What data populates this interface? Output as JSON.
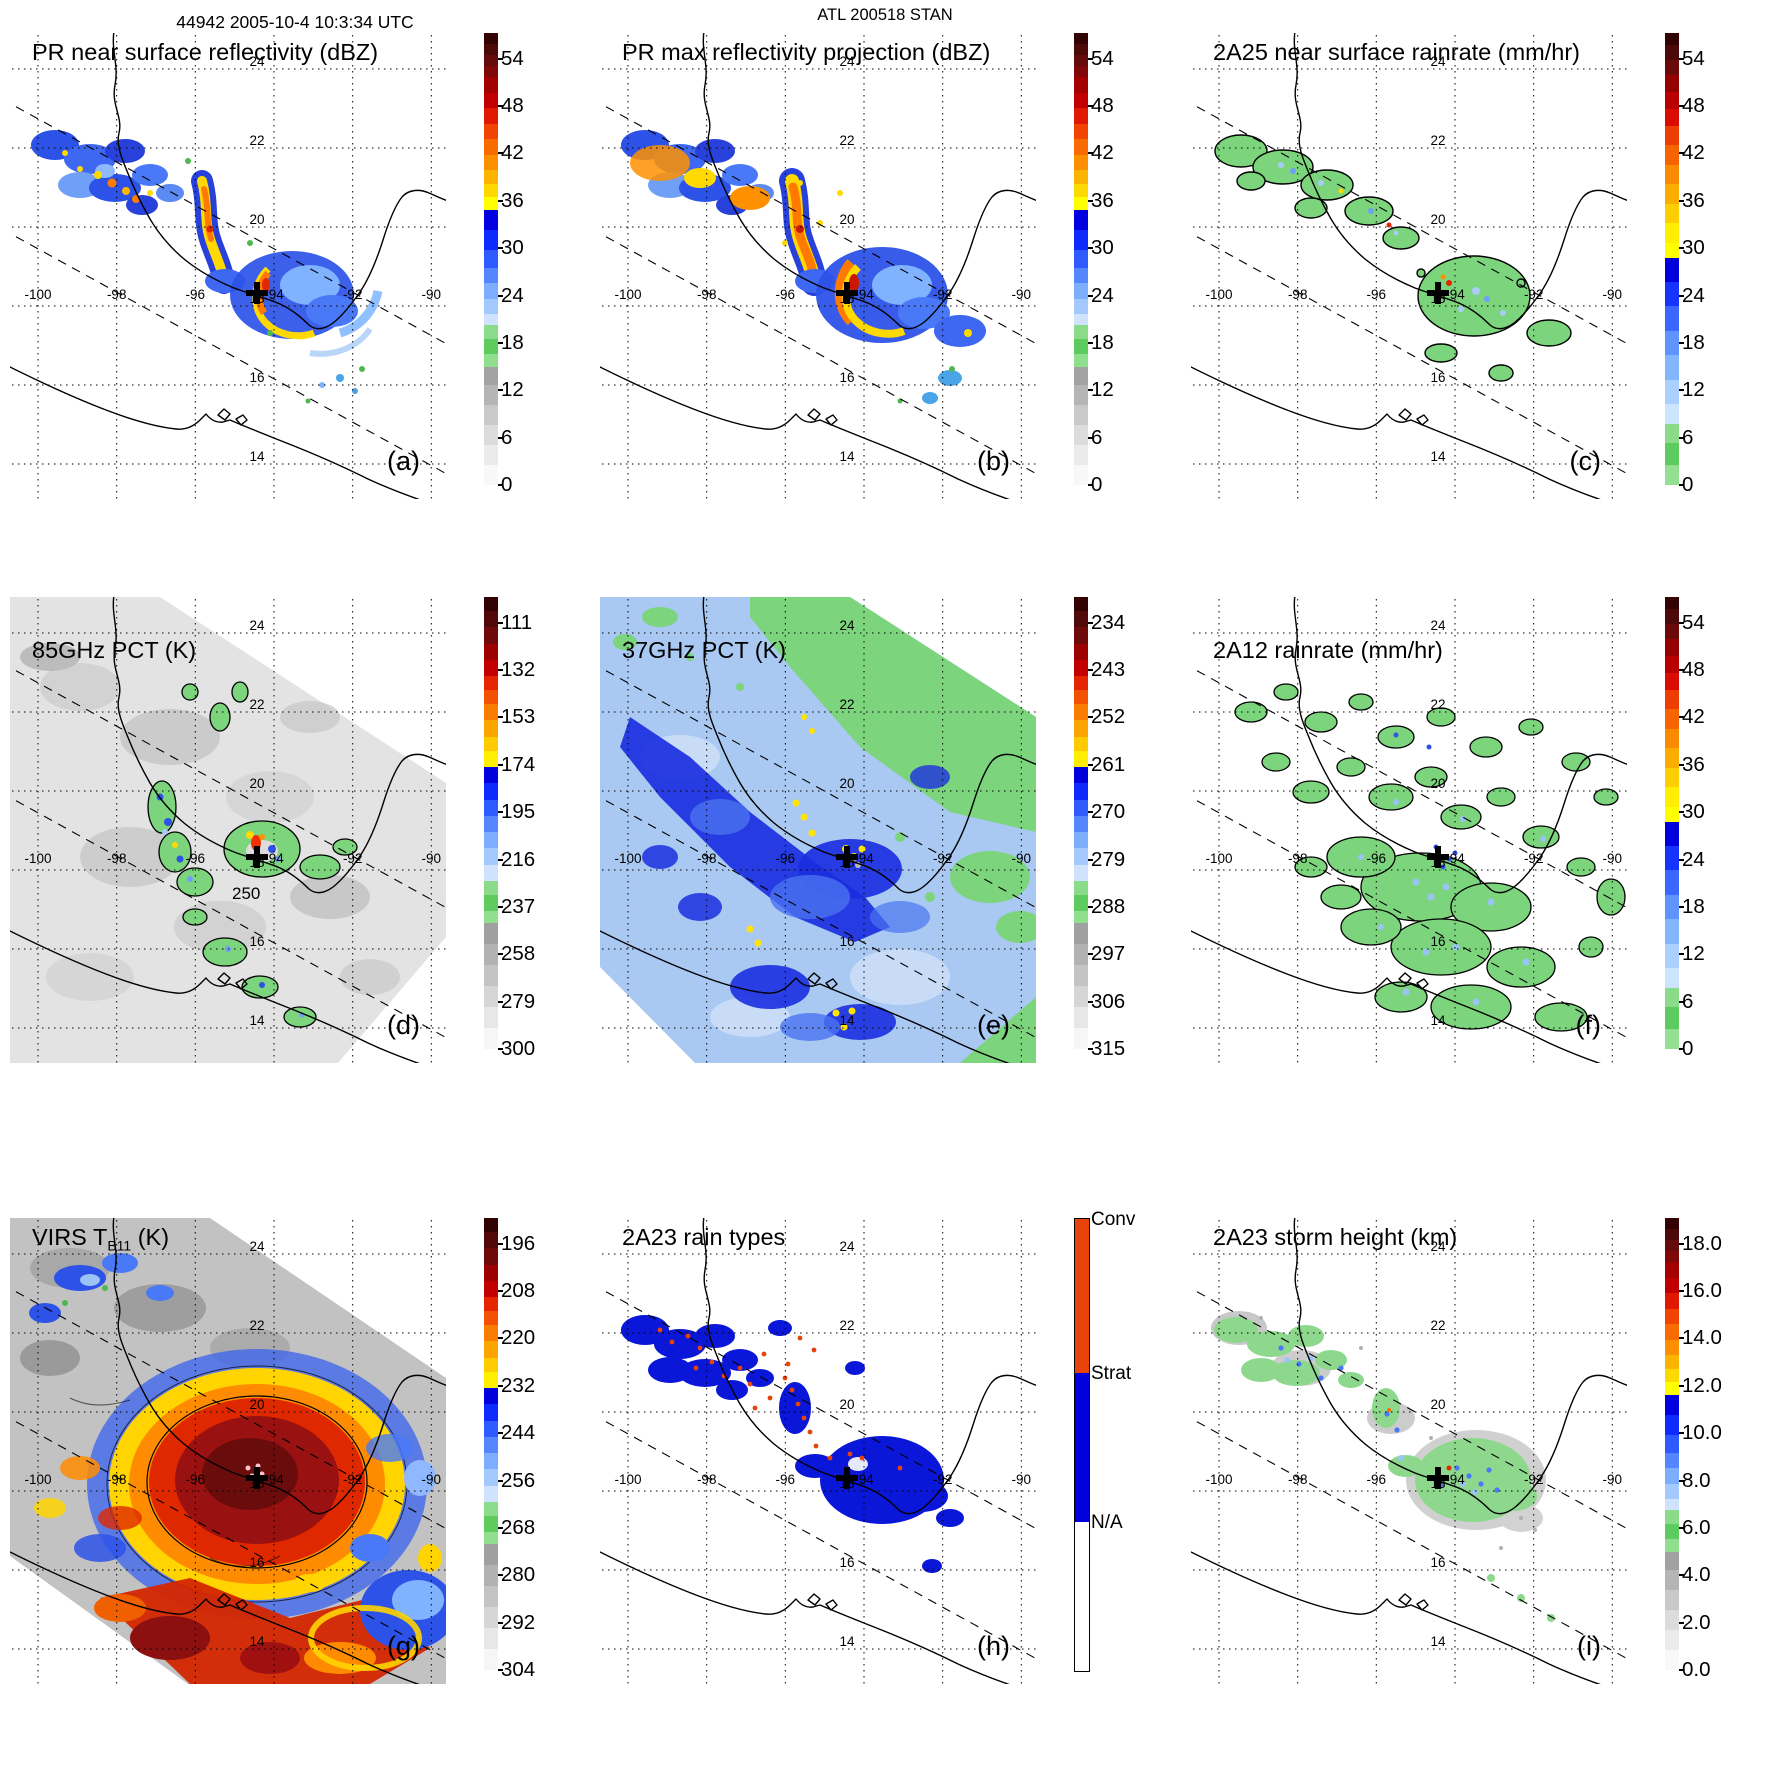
{
  "header": {
    "left_title": "44942 2005-10-4 10:3:34 UTC",
    "center_title": "ATL 200518 STAN"
  },
  "map": {
    "lat_labels": [
      "24",
      "22",
      "20",
      "18",
      "16",
      "14"
    ],
    "lon_labels": [
      "-100",
      "-98",
      "-96",
      "-94",
      "-92",
      "-90"
    ],
    "storm_marker": "+"
  },
  "panels": [
    {
      "id": "a",
      "letter": "(a)",
      "title_pre": "PR near surface reflectivity (dBZ)",
      "title_sub": "",
      "title_post": "",
      "colorbar": "dbz"
    },
    {
      "id": "b",
      "letter": "(b)",
      "title_pre": "PR max reflectivity projection (dBZ)",
      "title_sub": "",
      "title_post": "",
      "colorbar": "dbz"
    },
    {
      "id": "c",
      "letter": "(c)",
      "title_pre": "2A25 near surface rainrate (mm/hr)",
      "title_sub": "",
      "title_post": "",
      "colorbar": "rain"
    },
    {
      "id": "d",
      "letter": "(d)",
      "title_pre": "85GHz PCT (K)",
      "title_sub": "",
      "title_post": "",
      "colorbar": "pct85",
      "contour_label": "250"
    },
    {
      "id": "e",
      "letter": "(e)",
      "title_pre": "37GHz PCT (K)",
      "title_sub": "",
      "title_post": "",
      "colorbar": "pct37"
    },
    {
      "id": "f",
      "letter": "(f)",
      "title_pre": "2A12 rainrate (mm/hr)",
      "title_sub": "",
      "title_post": "",
      "colorbar": "rain2"
    },
    {
      "id": "g",
      "letter": "(g)",
      "title_pre": "VIRS T",
      "title_sub": "B11",
      "title_post": " (K)",
      "colorbar": "virs"
    },
    {
      "id": "h",
      "letter": "(h)",
      "title_pre": "2A23 rain types",
      "title_sub": "",
      "title_post": "",
      "colorbar": "raintype"
    },
    {
      "id": "i",
      "letter": "(i)",
      "title_pre": "2A23 storm height (km)",
      "title_sub": "",
      "title_post": "",
      "colorbar": "height"
    }
  ],
  "palettes": {
    "dbz": [
      [
        "#330303",
        2.5
      ],
      [
        "#4d0808",
        2.5
      ],
      [
        "#660b0b",
        2.5
      ],
      [
        "#800808",
        2.5
      ],
      [
        "#a30000",
        3.5
      ],
      [
        "#c00000",
        3.5
      ],
      [
        "#e01800",
        3.5
      ],
      [
        "#f04400",
        3.5
      ],
      [
        "#f76b00",
        3.5
      ],
      [
        "#fb8f00",
        3.5
      ],
      [
        "#fdb400",
        3
      ],
      [
        "#fed900",
        3
      ],
      [
        "#ffff00",
        3
      ],
      [
        "#0000e0",
        4.5
      ],
      [
        "#0d2bff",
        4.5
      ],
      [
        "#2e5bff",
        4
      ],
      [
        "#5487ff",
        3.5
      ],
      [
        "#7dadff",
        3.5
      ],
      [
        "#a4c9ff",
        3.5
      ],
      [
        "#cfe3ff",
        2.5
      ],
      [
        "#8adc8a",
        3
      ],
      [
        "#5ecb5e",
        3.5
      ],
      [
        "#8fdf8f",
        3
      ],
      [
        "#a2a2a2",
        4
      ],
      [
        "#b5b5b5",
        4.5
      ],
      [
        "#c9c9c9",
        4.5
      ],
      [
        "#dcdcdc",
        4.5
      ],
      [
        "#ebebeb",
        4.5
      ],
      [
        "#f8f8f8",
        4.5
      ]
    ],
    "rain": [
      [
        "#330303",
        2.5
      ],
      [
        "#4d0808",
        3
      ],
      [
        "#6b0909",
        3
      ],
      [
        "#960000",
        3.5
      ],
      [
        "#b80000",
        3.5
      ],
      [
        "#da0c00",
        3.5
      ],
      [
        "#ee3d00",
        4
      ],
      [
        "#f66400",
        4
      ],
      [
        "#fa8a00",
        4
      ],
      [
        "#fdac00",
        4
      ],
      [
        "#fecf00",
        4
      ],
      [
        "#ffee00",
        4
      ],
      [
        "#ffff00",
        3
      ],
      [
        "#0000dd",
        5
      ],
      [
        "#1535ff",
        5
      ],
      [
        "#3a68ff",
        5
      ],
      [
        "#5f94ff",
        5
      ],
      [
        "#84b6ff",
        5
      ],
      [
        "#a9d0ff",
        5
      ],
      [
        "#cde4ff",
        4
      ],
      [
        "#8adc8a",
        4
      ],
      [
        "#5ecb5e",
        4.5
      ],
      [
        "#93e093",
        4
      ]
    ],
    "pct": [
      [
        "#330303",
        3
      ],
      [
        "#500808",
        3.5
      ],
      [
        "#6e0a0a",
        3.5
      ],
      [
        "#9c0000",
        3.5
      ],
      [
        "#c30000",
        3.5
      ],
      [
        "#e52500",
        3
      ],
      [
        "#f25200",
        3
      ],
      [
        "#f87c00",
        3.5
      ],
      [
        "#fca400",
        3.5
      ],
      [
        "#fecb00",
        3
      ],
      [
        "#ffee00",
        3.5
      ],
      [
        "#0000dd",
        3.5
      ],
      [
        "#0d2bff",
        3.5
      ],
      [
        "#2e5bff",
        3.5
      ],
      [
        "#5487ff",
        3.5
      ],
      [
        "#7dadff",
        3.5
      ],
      [
        "#a4c9ff",
        3.5
      ],
      [
        "#cfe3ff",
        3.5
      ],
      [
        "#8adc8a",
        3
      ],
      [
        "#5ecb5e",
        3.5
      ],
      [
        "#8fdf8f",
        2.5
      ],
      [
        "#a0a0a0",
        4.5
      ],
      [
        "#b2b2b2",
        4.5
      ],
      [
        "#c4c4c4",
        4.5
      ],
      [
        "#d6d6d6",
        4.5
      ],
      [
        "#e7e7e7",
        4.5
      ],
      [
        "#f6f6f6",
        4.5
      ]
    ]
  },
  "colorbars": {
    "dbz": {
      "palette": "dbz",
      "ticks": [
        "54",
        "48",
        "42",
        "36",
        "30",
        "24",
        "18",
        "12",
        "6",
        "0"
      ]
    },
    "rain": {
      "palette": "rain",
      "ticks": [
        "54",
        "48",
        "42",
        "36",
        "30",
        "24",
        "18",
        "12",
        "6",
        "0"
      ]
    },
    "rain2": {
      "palette": "rain",
      "ticks": [
        "54",
        "48",
        "42",
        "36",
        "30",
        "24",
        "18",
        "12",
        "6",
        "0"
      ]
    },
    "pct85": {
      "palette": "pct",
      "ticks": [
        "111",
        "132",
        "153",
        "174",
        "195",
        "216",
        "237",
        "258",
        "279",
        "300"
      ]
    },
    "pct37": {
      "palette": "pct",
      "ticks": [
        "234",
        "243",
        "252",
        "261",
        "270",
        "279",
        "288",
        "297",
        "306",
        "315"
      ]
    },
    "virs": {
      "palette": "pct",
      "ticks": [
        "196",
        "208",
        "220",
        "232",
        "244",
        "256",
        "268",
        "280",
        "292",
        "304"
      ]
    },
    "height": {
      "palette": "dbz",
      "ticks": [
        "18.0",
        "16.0",
        "14.0",
        "12.0",
        "10.0",
        "8.0",
        "6.0",
        "4.0",
        "2.0",
        "0.0"
      ]
    },
    "raintype": {
      "palette": "raintype",
      "labels": [
        "Conv",
        "Strat",
        "N/A"
      ],
      "colors": [
        "#e8430a",
        "#0000dd",
        "#ffffff"
      ]
    }
  },
  "chart_data": [
    {
      "panel": "a",
      "type": "heatmap",
      "title": "PR near surface reflectivity (dBZ)",
      "units": "dBZ",
      "colorbar_ticks": [
        54,
        48,
        42,
        36,
        30,
        24,
        18,
        12,
        6,
        0
      ],
      "legend_position": "right"
    },
    {
      "panel": "b",
      "type": "heatmap",
      "title": "PR max reflectivity projection (dBZ)",
      "units": "dBZ",
      "colorbar_ticks": [
        54,
        48,
        42,
        36,
        30,
        24,
        18,
        12,
        6,
        0
      ],
      "legend_position": "right"
    },
    {
      "panel": "c",
      "type": "heatmap",
      "title": "2A25 near surface rainrate (mm/hr)",
      "units": "mm/hr",
      "colorbar_ticks": [
        54,
        48,
        42,
        36,
        30,
        24,
        18,
        12,
        6,
        0
      ],
      "legend_position": "right"
    },
    {
      "panel": "d",
      "type": "heatmap",
      "title": "85GHz PCT (K)",
      "units": "K",
      "colorbar_ticks": [
        111,
        132,
        153,
        174,
        195,
        216,
        237,
        258,
        279,
        300
      ],
      "contour_label": 250,
      "legend_position": "right"
    },
    {
      "panel": "e",
      "type": "heatmap",
      "title": "37GHz PCT (K)",
      "units": "K",
      "colorbar_ticks": [
        234,
        243,
        252,
        261,
        270,
        279,
        288,
        297,
        306,
        315
      ],
      "legend_position": "right"
    },
    {
      "panel": "f",
      "type": "heatmap",
      "title": "2A12 rainrate (mm/hr)",
      "units": "mm/hr",
      "colorbar_ticks": [
        54,
        48,
        42,
        36,
        30,
        24,
        18,
        12,
        6,
        0
      ],
      "legend_position": "right"
    },
    {
      "panel": "g",
      "type": "heatmap",
      "title": "VIRS TB11 (K)",
      "units": "K",
      "colorbar_ticks": [
        196,
        208,
        220,
        232,
        244,
        256,
        268,
        280,
        292,
        304
      ],
      "legend_position": "right"
    },
    {
      "panel": "h",
      "type": "heatmap",
      "title": "2A23 rain types",
      "units": "category",
      "categories": [
        "Conv",
        "Strat",
        "N/A"
      ],
      "legend_position": "right"
    },
    {
      "panel": "i",
      "type": "heatmap",
      "title": "2A23 storm height (km)",
      "units": "km",
      "colorbar_ticks": [
        18.0,
        16.0,
        14.0,
        12.0,
        10.0,
        8.0,
        6.0,
        4.0,
        2.0,
        0.0
      ],
      "legend_position": "right"
    },
    {
      "shared_map": {
        "lon_gridlines": [
          -100,
          -98,
          -96,
          -94,
          -92,
          -90
        ],
        "lat_gridlines": [
          24,
          22,
          20,
          18,
          16,
          14
        ],
        "storm_center_estimate": {
          "lon": -94.4,
          "lat": 18.3
        },
        "grid": "dotted"
      }
    }
  ]
}
